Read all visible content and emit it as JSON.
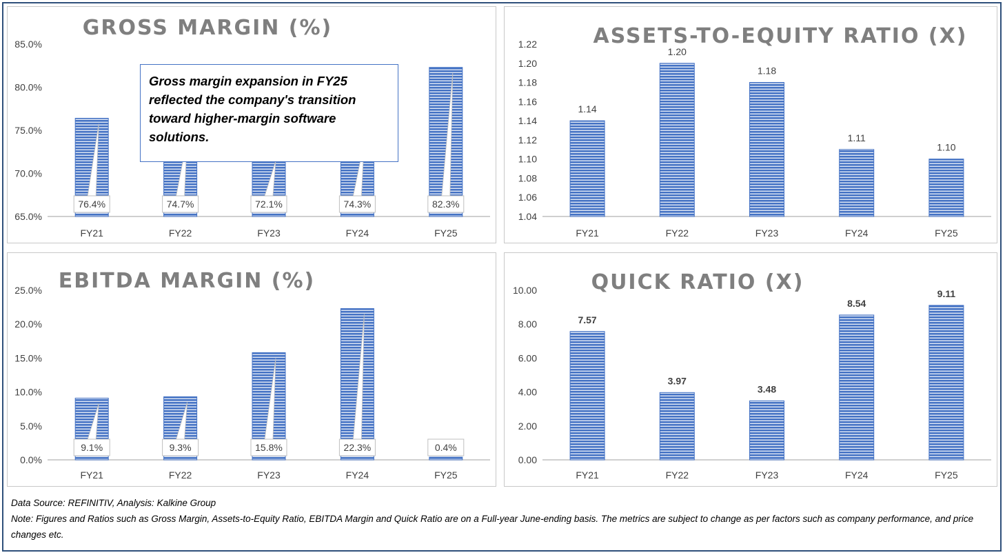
{
  "footer": {
    "source": "Data Source: REFINITIV, Analysis: Kalkine Group",
    "note": "Note: Figures and Ratios such as Gross Margin, Assets-to-Equity Ratio, EBITDA Margin and Quick Ratio are on a Full-year June-ending basis. The metrics are subject to change as per factors such as company performance, and price changes etc."
  },
  "annotation": "Gross margin expansion in FY25 reflected the company's transition toward higher-margin software solutions.",
  "colors": {
    "bar": "#4472c4",
    "bar_stripe": "#ffffff",
    "axis": "#bfbfbf",
    "title": "#7f7f7f",
    "frame": "#2e4f7a"
  },
  "chart_data": [
    {
      "type": "bar",
      "title": "GROSS MARGIN (%)",
      "categories": [
        "FY21",
        "FY22",
        "FY23",
        "FY24",
        "FY25"
      ],
      "values": [
        76.4,
        74.7,
        72.1,
        74.3,
        82.3
      ],
      "value_labels": [
        "76.4%",
        "74.7%",
        "72.1%",
        "74.3%",
        "82.3%"
      ],
      "label_style": "callout",
      "ylim": [
        65,
        85
      ],
      "yticks": [
        "65.0%",
        "70.0%",
        "75.0%",
        "80.0%",
        "85.0%"
      ],
      "xlabel": "",
      "ylabel": ""
    },
    {
      "type": "bar",
      "title": "ASSETS-TO-EQUITY RATIO (X)",
      "categories": [
        "FY21",
        "FY22",
        "FY23",
        "FY24",
        "FY25"
      ],
      "values": [
        1.14,
        1.2,
        1.18,
        1.11,
        1.1
      ],
      "value_labels": [
        "1.14",
        "1.20",
        "1.18",
        "1.11",
        "1.10"
      ],
      "label_style": "plain",
      "ylim": [
        1.04,
        1.22
      ],
      "yticks": [
        "1.04",
        "1.06",
        "1.08",
        "1.10",
        "1.12",
        "1.14",
        "1.16",
        "1.18",
        "1.20",
        "1.22"
      ],
      "xlabel": "",
      "ylabel": ""
    },
    {
      "type": "bar",
      "title": "EBITDA MARGIN (%)",
      "categories": [
        "FY21",
        "FY22",
        "FY23",
        "FY24",
        "FY25"
      ],
      "values": [
        9.1,
        9.3,
        15.8,
        22.3,
        0.4
      ],
      "value_labels": [
        "9.1%",
        "9.3%",
        "15.8%",
        "22.3%",
        "0.4%"
      ],
      "label_style": "callout",
      "ylim": [
        0,
        25
      ],
      "yticks": [
        "0.0%",
        "5.0%",
        "10.0%",
        "15.0%",
        "20.0%",
        "25.0%"
      ],
      "xlabel": "",
      "ylabel": ""
    },
    {
      "type": "bar",
      "title": "QUICK RATIO (X)",
      "categories": [
        "FY21",
        "FY22",
        "FY23",
        "FY24",
        "FY25"
      ],
      "values": [
        7.57,
        3.97,
        3.48,
        8.54,
        9.11
      ],
      "value_labels": [
        "7.57",
        "3.97",
        "3.48",
        "8.54",
        "9.11"
      ],
      "label_style": "bold",
      "ylim": [
        0,
        10
      ],
      "yticks": [
        "0.00",
        "2.00",
        "4.00",
        "6.00",
        "8.00",
        "10.00"
      ],
      "xlabel": "",
      "ylabel": ""
    }
  ]
}
